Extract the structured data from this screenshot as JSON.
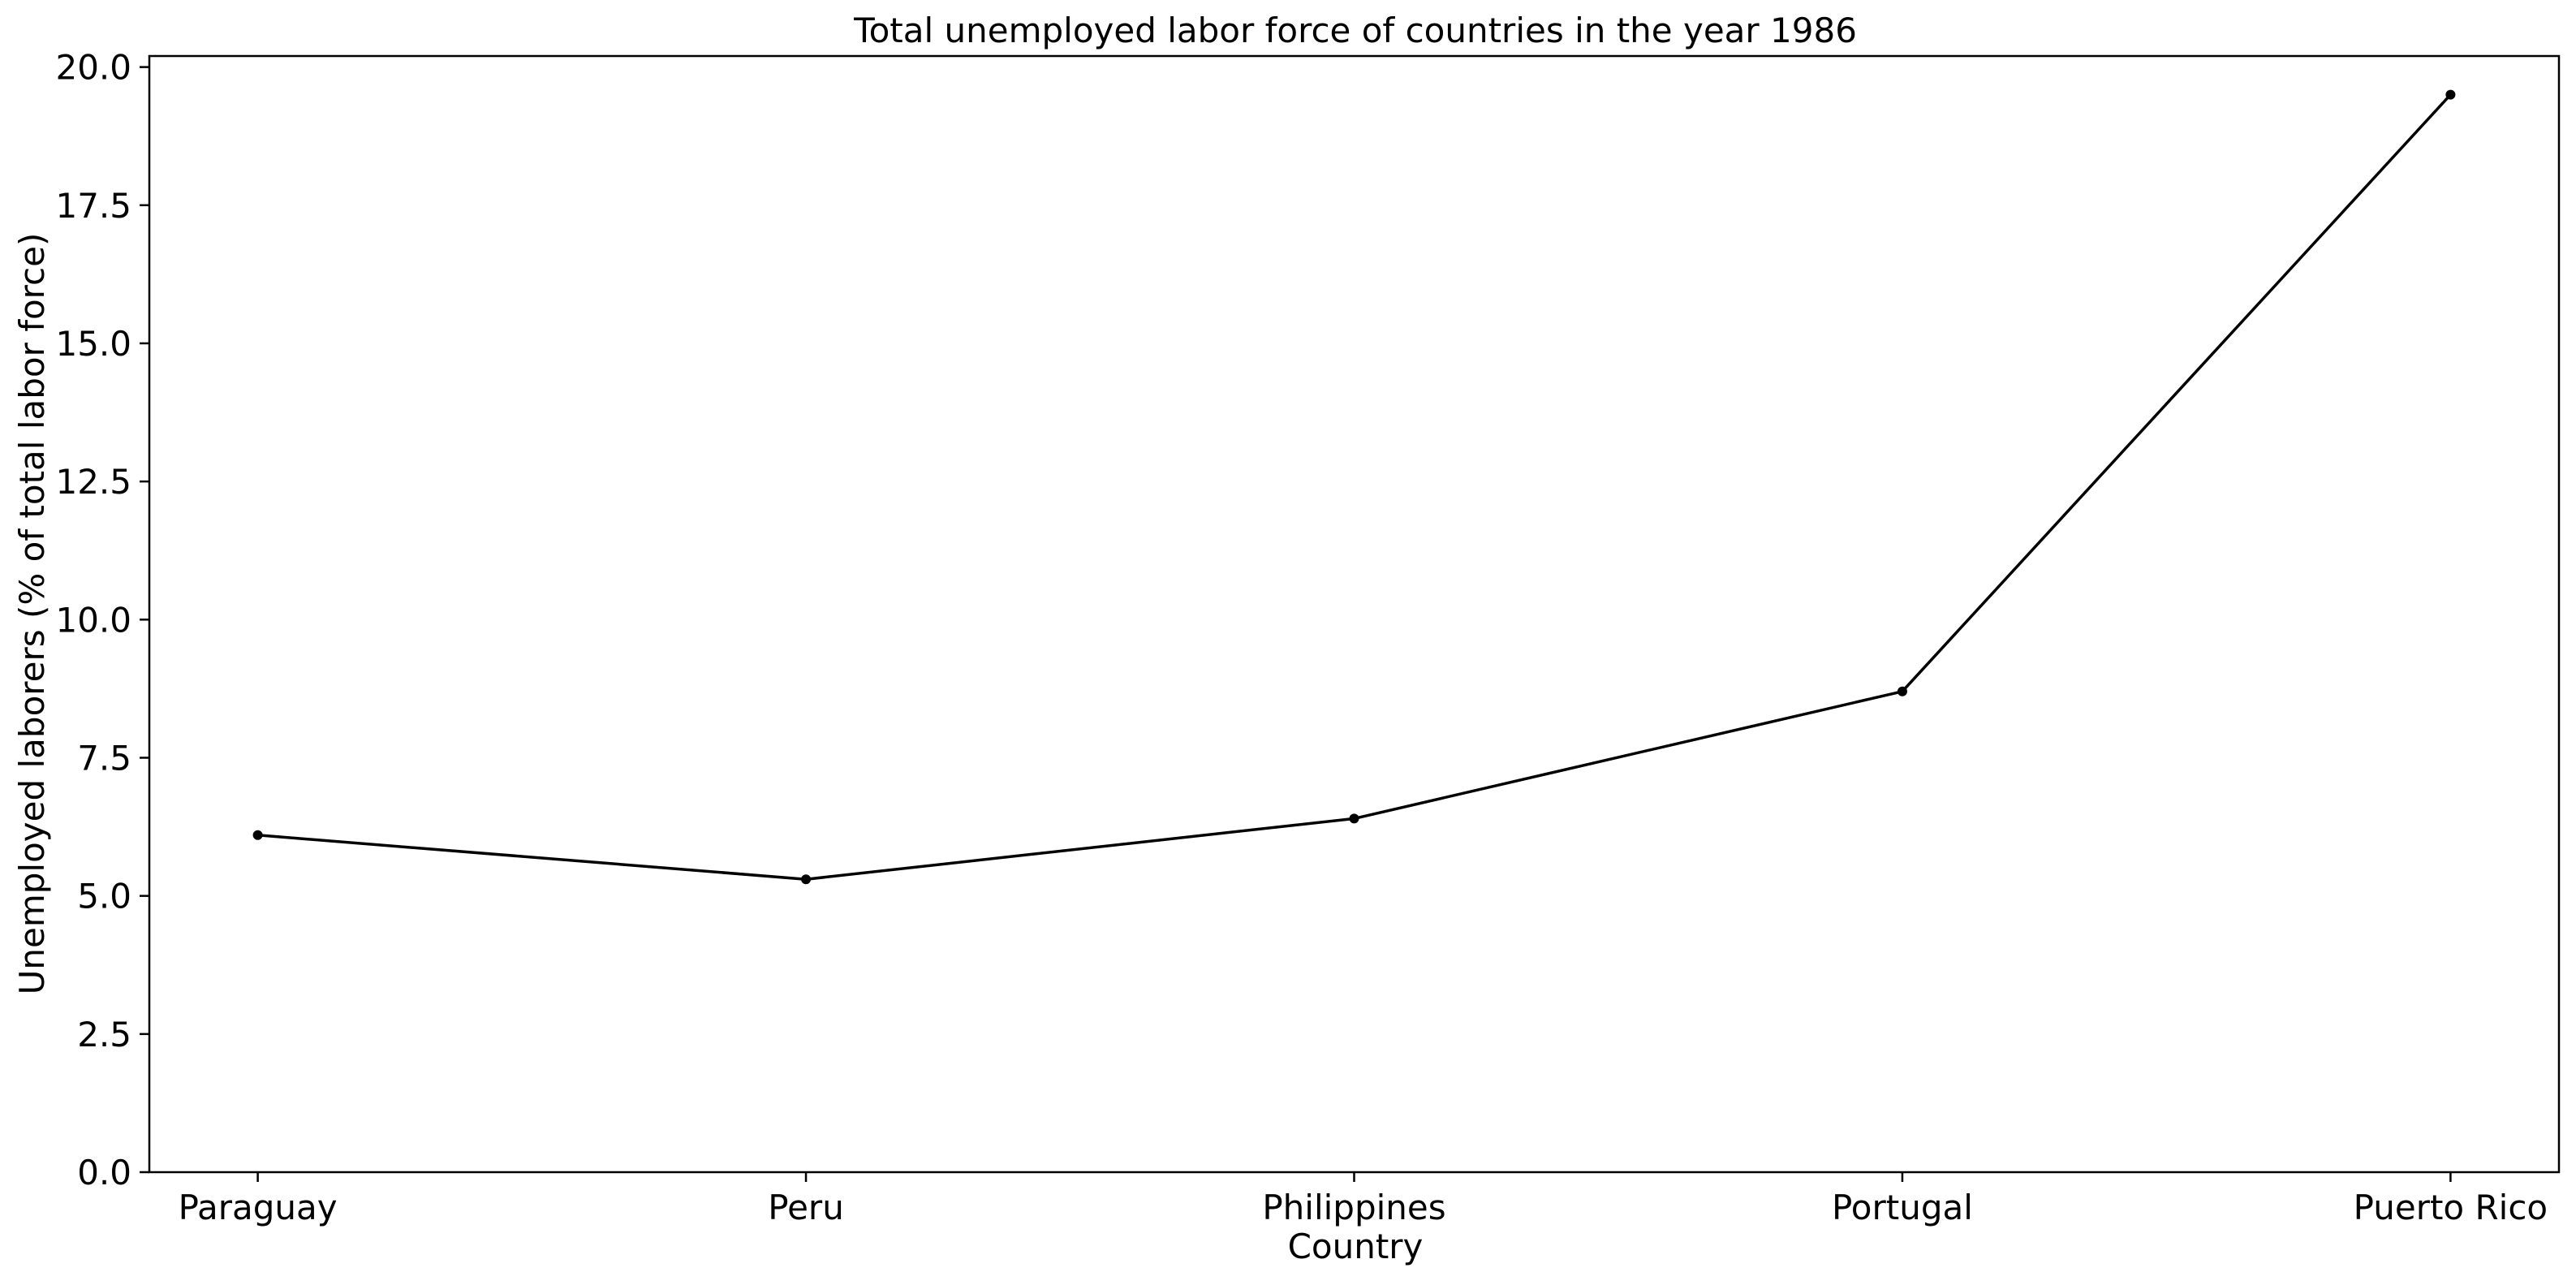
{
  "chart_data": {
    "type": "line",
    "title": "Total unemployed labor force of countries in the year 1986",
    "xlabel": "Country",
    "ylabel": "Unemployed laborers (% of total labor force)",
    "categories": [
      "Paraguay",
      "Peru",
      "Philippines",
      "Portugal",
      "Puerto Rico"
    ],
    "series": [
      {
        "values": [
          6.1,
          5.3,
          6.4,
          8.7,
          19.5
        ]
      }
    ],
    "ylim": [
      0,
      20.2
    ],
    "yticks": [
      0.0,
      2.5,
      5.0,
      7.5,
      10.0,
      12.5,
      15.0,
      17.5,
      20.0
    ],
    "ytick_labels": [
      "0.0",
      "2.5",
      "5.0",
      "7.5",
      "10.0",
      "12.5",
      "15.0",
      "17.5",
      "20.0"
    ],
    "grid": false,
    "colors": {
      "line": "#000000",
      "marker": "#000000",
      "axes": "#000000"
    },
    "marker": "circle"
  }
}
